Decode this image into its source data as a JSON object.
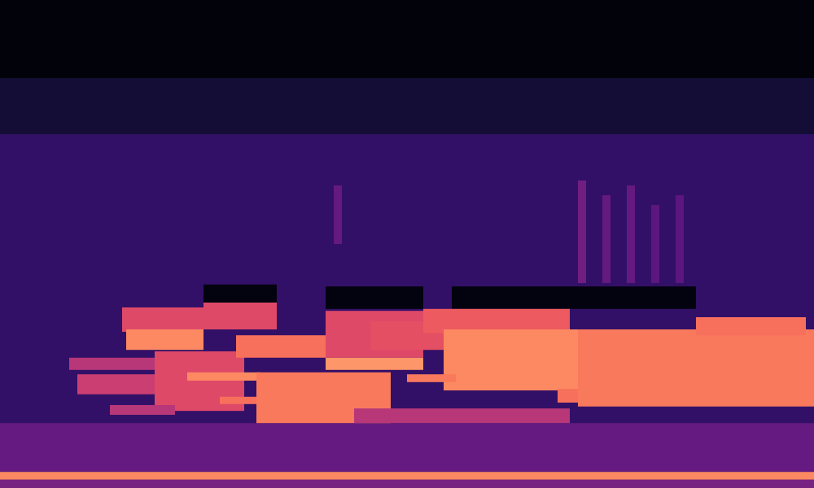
{
  "chart_data": {
    "type": "heatmap",
    "xlim": [
      0,
      100
    ],
    "ylim": [
      0,
      100
    ],
    "zlim": [
      0,
      1
    ],
    "color": "magma",
    "tick_labels": false,
    "grid": false,
    "cells": [
      {
        "x1": 0,
        "x2": 100,
        "y1": 0,
        "y2": 100,
        "value": 0.18
      },
      {
        "x1": 0,
        "x2": 100,
        "y1": 84,
        "y2": 100,
        "value": 0.02
      },
      {
        "x1": 0,
        "x2": 100,
        "y1": 72.5,
        "y2": 84,
        "value": 0.1
      },
      {
        "x1": 0,
        "x2": 100,
        "y1": 3.3,
        "y2": 13.3,
        "value": 0.3
      },
      {
        "x1": 0,
        "x2": 100,
        "y1": 1.7,
        "y2": 3.3,
        "value": 0.75
      },
      {
        "x1": 0,
        "x2": 100,
        "y1": 0,
        "y2": 1.7,
        "value": 0.35
      },
      {
        "x1": 71,
        "x2": 72,
        "y1": 42,
        "y2": 63,
        "value": 0.33
      },
      {
        "x1": 74,
        "x2": 75,
        "y1": 42,
        "y2": 60,
        "value": 0.3
      },
      {
        "x1": 77,
        "x2": 78,
        "y1": 42,
        "y2": 62,
        "value": 0.3
      },
      {
        "x1": 80,
        "x2": 81,
        "y1": 42,
        "y2": 58,
        "value": 0.28
      },
      {
        "x1": 83,
        "x2": 84,
        "y1": 42,
        "y2": 60,
        "value": 0.28
      },
      {
        "x1": 41,
        "x2": 42,
        "y1": 50,
        "y2": 62,
        "value": 0.3
      },
      {
        "x1": 25,
        "x2": 34,
        "y1": 38,
        "y2": 41.7,
        "value": 0.03
      },
      {
        "x1": 40,
        "x2": 52,
        "y1": 36.7,
        "y2": 41.3,
        "value": 0.03
      },
      {
        "x1": 55.5,
        "x2": 85.5,
        "y1": 36.7,
        "y2": 41.3,
        "value": 0.03
      },
      {
        "x1": 15,
        "x2": 25,
        "y1": 32,
        "y2": 37,
        "value": 0.6
      },
      {
        "x1": 15.5,
        "x2": 25,
        "y1": 28.3,
        "y2": 32.5,
        "value": 0.75
      },
      {
        "x1": 25,
        "x2": 34,
        "y1": 32.5,
        "y2": 38,
        "value": 0.6
      },
      {
        "x1": 8.5,
        "x2": 19,
        "y1": 24.2,
        "y2": 26.7,
        "value": 0.5
      },
      {
        "x1": 9.5,
        "x2": 19,
        "y1": 19.2,
        "y2": 23.3,
        "value": 0.55
      },
      {
        "x1": 19,
        "x2": 30,
        "y1": 15.8,
        "y2": 28,
        "value": 0.6
      },
      {
        "x1": 29,
        "x2": 40,
        "y1": 26.7,
        "y2": 31.3,
        "value": 0.7
      },
      {
        "x1": 23,
        "x2": 32,
        "y1": 22,
        "y2": 23.7,
        "value": 0.75
      },
      {
        "x1": 27,
        "x2": 32,
        "y1": 17.2,
        "y2": 18.7,
        "value": 0.7
      },
      {
        "x1": 13.5,
        "x2": 21.5,
        "y1": 15,
        "y2": 17,
        "value": 0.5
      },
      {
        "x1": 31.5,
        "x2": 48,
        "y1": 13.3,
        "y2": 23.7,
        "value": 0.72
      },
      {
        "x1": 40,
        "x2": 52,
        "y1": 26.7,
        "y2": 36.3,
        "value": 0.6
      },
      {
        "x1": 40,
        "x2": 52,
        "y1": 24.2,
        "y2": 26.7,
        "value": 0.78
      },
      {
        "x1": 45.5,
        "x2": 54.5,
        "y1": 28.3,
        "y2": 34.2,
        "value": 0.62
      },
      {
        "x1": 43.5,
        "x2": 70,
        "y1": 13.3,
        "y2": 16.3,
        "value": 0.5
      },
      {
        "x1": 52,
        "x2": 70,
        "y1": 31.7,
        "y2": 36.7,
        "value": 0.65
      },
      {
        "x1": 54.5,
        "x2": 71.5,
        "y1": 20,
        "y2": 32.5,
        "value": 0.75
      },
      {
        "x1": 50,
        "x2": 56,
        "y1": 21.7,
        "y2": 23.3,
        "value": 0.72
      },
      {
        "x1": 68.5,
        "x2": 74.5,
        "y1": 17.5,
        "y2": 20.3,
        "value": 0.7
      },
      {
        "x1": 71,
        "x2": 100,
        "y1": 16.7,
        "y2": 32.5,
        "value": 0.72
      },
      {
        "x1": 85.5,
        "x2": 99,
        "y1": 31.3,
        "y2": 35,
        "value": 0.7
      }
    ]
  }
}
